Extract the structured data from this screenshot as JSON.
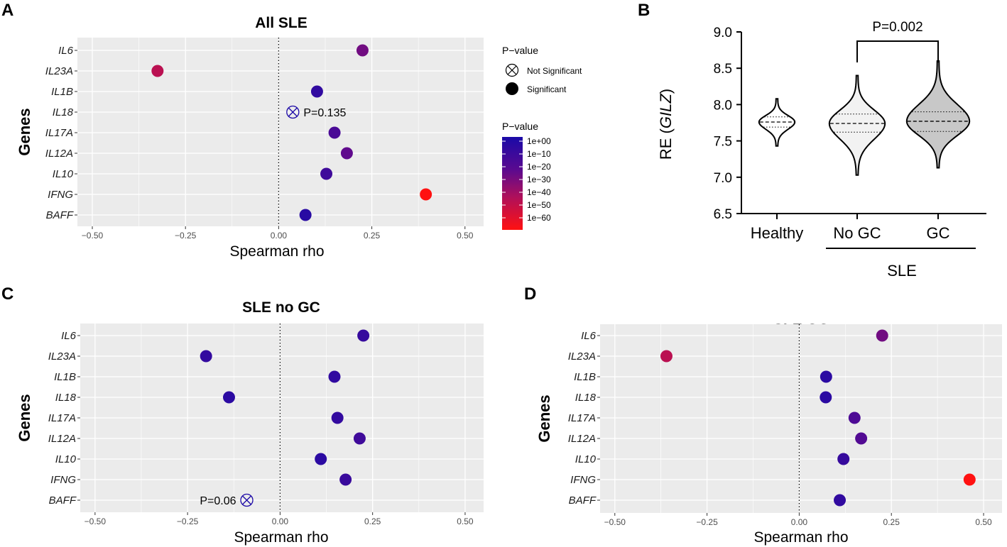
{
  "chart_data": [
    {
      "id": "A",
      "panel_letter": "A",
      "type": "scatter",
      "title": "All SLE",
      "xlabel": "Spearman rho",
      "ylabel": "Genes",
      "xlim": [
        -0.54,
        0.55
      ],
      "xticks": [
        -0.5,
        -0.25,
        0.0,
        0.25,
        0.5
      ],
      "xtick_labels": [
        "−0.50",
        "−0.25",
        "0.00",
        "0.25",
        "0.50"
      ],
      "genes": [
        "IL6",
        "IL23A",
        "IL1B",
        "IL18",
        "IL17A",
        "IL12A",
        "IL10",
        "IFNG",
        "BAFF"
      ],
      "rho": [
        0.225,
        -0.325,
        0.103,
        0.038,
        0.15,
        0.183,
        0.128,
        0.395,
        0.072
      ],
      "log10_p": [
        -28,
        -45,
        -8,
        -1,
        -17,
        -24,
        -13,
        -65,
        -5
      ],
      "significant": [
        true,
        true,
        true,
        false,
        true,
        true,
        true,
        true,
        true
      ],
      "annotations": [
        {
          "gene": "IL18",
          "text": "P=0.135",
          "side": "right"
        }
      ]
    },
    {
      "id": "C",
      "panel_letter": "C",
      "type": "scatter",
      "title": "SLE no GC",
      "xlabel": "Spearman rho",
      "ylabel": "Genes",
      "xlim": [
        -0.54,
        0.55
      ],
      "xticks": [
        -0.5,
        -0.25,
        0.0,
        0.25,
        0.5
      ],
      "xtick_labels": [
        "−0.50",
        "−0.25",
        "0.00",
        "0.25",
        "0.50"
      ],
      "genes": [
        "IL6",
        "IL23A",
        "IL1B",
        "IL18",
        "IL17A",
        "IL12A",
        "IL10",
        "IFNG",
        "BAFF"
      ],
      "rho": [
        0.225,
        -0.2,
        0.147,
        -0.138,
        0.155,
        0.215,
        0.11,
        0.177,
        -0.09
      ],
      "log10_p": [
        -10,
        -9,
        -8,
        -6,
        -9,
        -13,
        -6,
        -11,
        -1
      ],
      "significant": [
        true,
        true,
        true,
        true,
        true,
        true,
        true,
        true,
        false
      ],
      "annotations": [
        {
          "gene": "BAFF",
          "text": "P=0.06",
          "side": "left"
        }
      ]
    },
    {
      "id": "D",
      "panel_letter": "D",
      "type": "scatter",
      "title": "SLE GC",
      "xlabel": "Spearman rho",
      "ylabel": "Genes",
      "xlim": [
        -0.54,
        0.55
      ],
      "xticks": [
        -0.5,
        -0.25,
        0.0,
        0.25,
        0.5
      ],
      "xtick_labels": [
        "−0.50",
        "−0.25",
        "0.00",
        "0.25",
        "0.50"
      ],
      "genes": [
        "IL6",
        "IL23A",
        "IL1B",
        "IL18",
        "IL17A",
        "IL12A",
        "IL10",
        "IFNG",
        "BAFF"
      ],
      "rho": [
        0.225,
        -0.36,
        0.073,
        0.072,
        0.15,
        0.168,
        0.12,
        0.462,
        0.11
      ],
      "log10_p": [
        -28,
        -45,
        -6,
        -6,
        -18,
        -20,
        -10,
        -65,
        -8
      ],
      "significant": [
        true,
        true,
        true,
        true,
        true,
        true,
        true,
        true,
        true
      ],
      "annotations": []
    },
    {
      "id": "B",
      "panel_letter": "B",
      "type": "violin",
      "ylabel_prefix": "RE (",
      "ylabel_gene": "GILZ",
      "ylabel_suffix": ")",
      "ylim": [
        6.5,
        9.0
      ],
      "yticks": [
        6.5,
        7.0,
        7.5,
        8.0,
        8.5,
        9.0
      ],
      "ytick_labels": [
        "6.5",
        "7.0",
        "7.5",
        "8.0",
        "8.5",
        "9.0"
      ],
      "categories": [
        "Healthy",
        "No GC",
        "GC"
      ],
      "group_label": "SLE",
      "groups": [
        {
          "name": "Healthy",
          "min": 7.43,
          "q1": 7.69,
          "median": 7.76,
          "q3": 7.83,
          "max": 8.08,
          "fill": "#ffffff"
        },
        {
          "name": "No GC",
          "min": 7.03,
          "q1": 7.62,
          "median": 7.74,
          "q3": 7.87,
          "max": 8.4,
          "fill": "#f2f2f2"
        },
        {
          "name": "GC",
          "min": 7.13,
          "q1": 7.63,
          "median": 7.77,
          "q3": 7.9,
          "max": 8.6,
          "fill": "#c8c8c8"
        }
      ],
      "comparison": {
        "from": "No GC",
        "to": "GC",
        "text": "P=0.002"
      }
    }
  ],
  "legend": {
    "shape_title": "P−value",
    "shape_items": [
      "Not Significant",
      "Significant"
    ],
    "color_title": "P−value",
    "color_ticks": [
      "1e+00",
      "1e−10",
      "1e−20",
      "1e−30",
      "1e−40",
      "1e−50",
      "1e−60"
    ],
    "color_high": "#1a0aa8",
    "color_low": "#ff1111"
  },
  "colors": {
    "panel_bg": "#ebebeb",
    "grid": "#ffffff"
  }
}
